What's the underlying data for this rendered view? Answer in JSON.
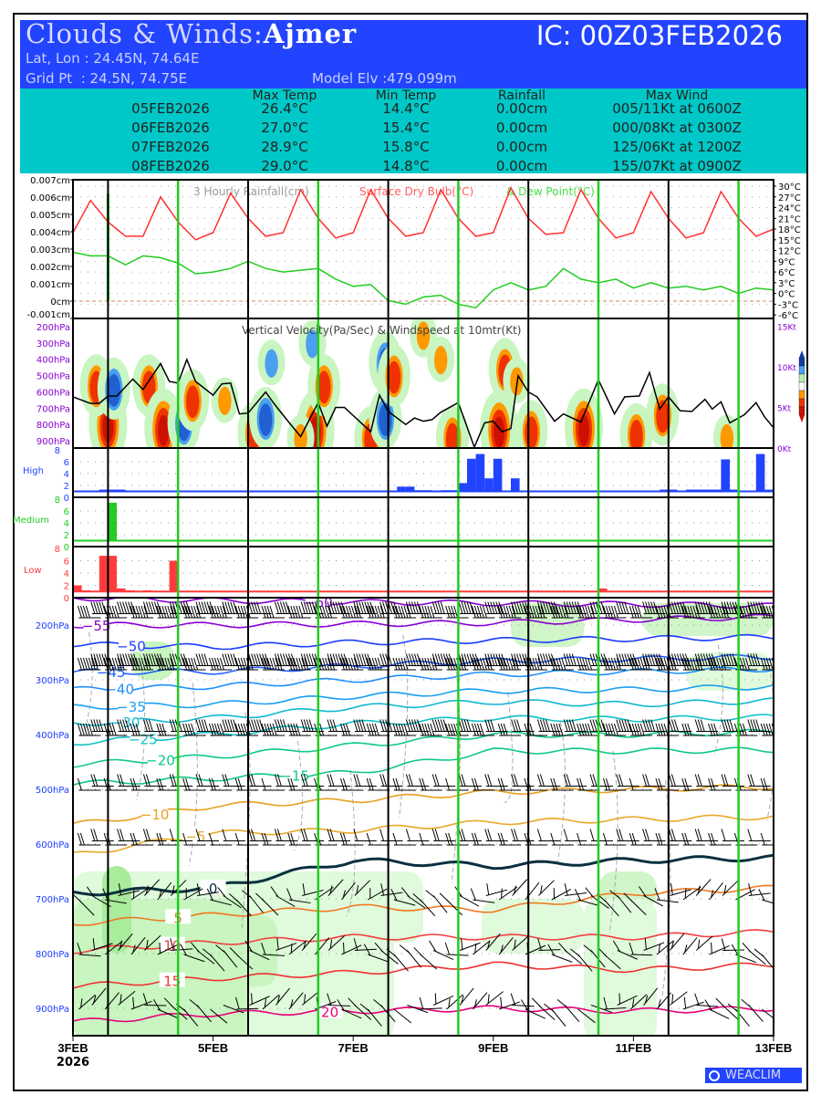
{
  "header": {
    "title_prefix": "Clouds & Winds:",
    "location": "Ajmer",
    "ic": "IC: 00Z03FEB2026",
    "latlon": "Lat, Lon : 24.45N, 74.64E",
    "gridpt": "Grid Pt  : 24.5N, 74.75E",
    "elev": "Model Elv :479.099m"
  },
  "summary": {
    "columns": [
      "Max Temp",
      "Min Temp",
      "Rainfall",
      "Max Wind"
    ],
    "rows": [
      {
        "date": "05FEB2026",
        "max": "26.4°C",
        "min": "14.4°C",
        "rain": "0.00cm",
        "wind": "005/11Kt at 0600Z"
      },
      {
        "date": "06FEB2026",
        "max": "27.0°C",
        "min": "15.4°C",
        "rain": "0.00cm",
        "wind": "000/08Kt at 0300Z"
      },
      {
        "date": "07FEB2026",
        "max": "28.9°C",
        "min": "15.8°C",
        "rain": "0.00cm",
        "wind": "125/06Kt at 1200Z"
      },
      {
        "date": "08FEB2026",
        "max": "29.0°C",
        "min": "14.8°C",
        "rain": "0.00cm",
        "wind": "155/07Kt at 0900Z"
      }
    ]
  },
  "watermark": "WEACLIM",
  "colors": {
    "header_bg": "#2244ff",
    "table_bg": "#00c8c8",
    "dry_bulb": "#ff3030",
    "dew_point": "#22cc22",
    "high": "#2244ff",
    "medium": "#22cc22",
    "low": "#ff3c3c"
  },
  "chart_data": [
    {
      "type": "line",
      "title": "3 Hourly Rainfall(cm) Surface Dry Bulb(°C) & Dew Point(°C)",
      "title_parts": [
        "3 Hourly Rainfall(cm)",
        "Surface Dry Bulb(°C)",
        "& Dew Point(°C)"
      ],
      "x_hours_step": 6,
      "xlim_hours": [
        0,
        240
      ],
      "left_ylim": [
        -0.001,
        0.007
      ],
      "left_ticks": [
        "0.007cm",
        "0.006cm",
        "0.005cm",
        "0.004cm",
        "0.003cm",
        "0.002cm",
        "0.001cm",
        "0cm",
        "-0.001cm"
      ],
      "right_ylim": [
        -6,
        30
      ],
      "right_ticks": [
        "30°C",
        "27°C",
        "24°C",
        "21°C",
        "18°C",
        "15°C",
        "12°C",
        "9°C",
        "6°C",
        "3°C",
        "0°C",
        "-3°C",
        "-6°C"
      ],
      "rain": [
        {
          "hour": 12,
          "cm": 0.0062
        }
      ],
      "series": [
        {
          "name": "Surface Dry Bulb",
          "values": [
            17,
            26,
            20,
            16,
            16,
            27,
            20,
            15,
            17,
            28,
            21,
            16,
            17,
            29,
            21,
            15.5,
            17,
            29,
            21,
            16,
            17,
            29,
            21,
            16,
            17,
            29.5,
            21,
            16.5,
            17,
            29,
            21,
            15.5,
            17,
            28.5,
            21,
            15.5,
            17,
            28.5,
            21,
            16,
            18
          ]
        },
        {
          "name": "Dew Point",
          "values": [
            11.5,
            10.5,
            10.5,
            8,
            10.5,
            10,
            8.5,
            5.5,
            6,
            7,
            9,
            7,
            6,
            6.5,
            7,
            4,
            2,
            2.5,
            -2,
            -3,
            -1,
            -0.5,
            -3,
            -4,
            1,
            3,
            1,
            2,
            7,
            4,
            3,
            4,
            1.5,
            3,
            1.5,
            2,
            1,
            2,
            0,
            1.5,
            1
          ]
        }
      ]
    },
    {
      "type": "heatmap",
      "title": "Vertical Velocity(Pa/Sec) & Windspeed at 10mtr(Kt)",
      "left_ticks": [
        "200hPa",
        "300hPa",
        "400hPa",
        "500hPa",
        "600hPa",
        "700hPa",
        "800hPa",
        "900hPa"
      ],
      "right_ticks": [
        "15Kt",
        "10Kt",
        "5Kt",
        "0Kt"
      ],
      "windspeed_kt": [
        [
          0,
          6.3
        ],
        [
          6,
          5.5
        ],
        [
          9,
          5.5
        ],
        [
          12,
          6.4
        ],
        [
          15,
          6.4
        ],
        [
          20.5,
          8.5
        ],
        [
          24,
          7.2
        ],
        [
          30,
          10.4
        ],
        [
          33,
          8.2
        ],
        [
          36,
          8
        ],
        [
          39,
          10.9
        ],
        [
          42,
          8.2
        ],
        [
          48,
          6.5
        ],
        [
          51,
          7.9
        ],
        [
          54,
          8
        ],
        [
          57,
          4.2
        ],
        [
          60,
          4.3
        ],
        [
          66,
          6.9
        ],
        [
          69,
          5.4
        ],
        [
          73,
          3.6
        ],
        [
          78,
          1.4
        ],
        [
          84,
          5.6
        ],
        [
          87,
          2.7
        ],
        [
          90,
          5
        ],
        [
          93,
          5
        ],
        [
          102,
          2
        ],
        [
          105,
          6.5
        ],
        [
          108,
          4.5
        ],
        [
          114,
          2.9
        ],
        [
          117,
          3.7
        ],
        [
          120,
          3.3
        ],
        [
          123,
          3.5
        ],
        [
          126,
          4.4
        ],
        [
          132,
          5.6
        ],
        [
          137.5,
          0.1
        ],
        [
          141,
          3.1
        ],
        [
          144,
          3.3
        ],
        [
          147,
          2
        ],
        [
          150,
          2.4
        ],
        [
          152.5,
          8.9
        ],
        [
          156,
          6.9
        ],
        [
          159,
          6.3
        ],
        [
          165,
          3.3
        ],
        [
          168,
          4.2
        ],
        [
          174,
          3.2
        ],
        [
          180,
          8.4
        ],
        [
          185.5,
          4.2
        ],
        [
          189,
          6.3
        ],
        [
          194,
          6.4
        ],
        [
          197.5,
          9.3
        ],
        [
          201,
          4.8
        ],
        [
          204,
          6.3
        ],
        [
          208,
          4.6
        ],
        [
          212,
          4.5
        ],
        [
          216.5,
          6
        ],
        [
          219,
          4.8
        ],
        [
          222,
          5.7
        ],
        [
          225,
          3.1
        ],
        [
          230,
          4.1
        ],
        [
          234,
          5.6
        ],
        [
          237,
          3.8
        ],
        [
          240,
          2.5
        ]
      ],
      "features": [
        {
          "hour": 12,
          "p": 800,
          "sign": 1,
          "strength": 3
        },
        {
          "hour": 8,
          "p": 560,
          "sign": 1,
          "strength": 2
        },
        {
          "hour": 14,
          "p": 580,
          "sign": -1,
          "strength": 2
        },
        {
          "hour": 26,
          "p": 560,
          "sign": 1,
          "strength": 2
        },
        {
          "hour": 31,
          "p": 820,
          "sign": 1,
          "strength": 3
        },
        {
          "hour": 38,
          "p": 790,
          "sign": -1,
          "strength": 2
        },
        {
          "hour": 41,
          "p": 650,
          "sign": 1,
          "strength": 2
        },
        {
          "hour": 52,
          "p": 650,
          "sign": 1,
          "strength": 1
        },
        {
          "hour": 62,
          "p": 850,
          "sign": 1,
          "strength": 2
        },
        {
          "hour": 66,
          "p": 760,
          "sign": -1,
          "strength": 2
        },
        {
          "hour": 83,
          "p": 830,
          "sign": 1,
          "strength": 3
        },
        {
          "hour": 78,
          "p": 880,
          "sign": 1,
          "strength": 1
        },
        {
          "hour": 68,
          "p": 420,
          "sign": -1,
          "strength": 1
        },
        {
          "hour": 86,
          "p": 560,
          "sign": 1,
          "strength": 2
        },
        {
          "hour": 102,
          "p": 880,
          "sign": 1,
          "strength": 2
        },
        {
          "hour": 107,
          "p": 760,
          "sign": -1,
          "strength": 2
        },
        {
          "hour": 107,
          "p": 420,
          "sign": -1,
          "strength": 2
        },
        {
          "hour": 110,
          "p": 500,
          "sign": 1,
          "strength": 2
        },
        {
          "hour": 130,
          "p": 880,
          "sign": 1,
          "strength": 2
        },
        {
          "hour": 126,
          "p": 400,
          "sign": 1,
          "strength": 1
        },
        {
          "hour": 146,
          "p": 830,
          "sign": 1,
          "strength": 3
        },
        {
          "hour": 148,
          "p": 460,
          "sign": 1,
          "strength": 2
        },
        {
          "hour": 152,
          "p": 530,
          "sign": 1,
          "strength": 1
        },
        {
          "hour": 157,
          "p": 840,
          "sign": 1,
          "strength": 2
        },
        {
          "hour": 175,
          "p": 820,
          "sign": 1,
          "strength": 3
        },
        {
          "hour": 193,
          "p": 860,
          "sign": 1,
          "strength": 2
        },
        {
          "hour": 202,
          "p": 740,
          "sign": 1,
          "strength": 2
        },
        {
          "hour": 224,
          "p": 880,
          "sign": 1,
          "strength": 1
        },
        {
          "hour": 82,
          "p": 300,
          "sign": -1,
          "strength": 1
        },
        {
          "hour": 120,
          "p": 250,
          "sign": 1,
          "strength": 1
        }
      ]
    },
    {
      "type": "bar",
      "panels": [
        {
          "name": "High",
          "ticks": [
            "8",
            "6",
            "4",
            "2",
            "0"
          ],
          "values": [
            1,
            1,
            1,
            1.3,
            1.3,
            1.3,
            0,
            0,
            1,
            1,
            1,
            1,
            1,
            1,
            1,
            1,
            1,
            1,
            1,
            1,
            1,
            1,
            1,
            1,
            1,
            1,
            1,
            1,
            1,
            1,
            1,
            1,
            1,
            1,
            1,
            1,
            1,
            1.8,
            1.8,
            1.2,
            1.2,
            1,
            1.2,
            1.2,
            2.4,
            6.5,
            7.3,
            3.2,
            6.5,
            1,
            3.2,
            1,
            1,
            1,
            1,
            1,
            1,
            1,
            1,
            1,
            1,
            1,
            1,
            1,
            1,
            1,
            1,
            1.3,
            1.3,
            1,
            1.3,
            1.3,
            1.3,
            1.3,
            6.4,
            1.3,
            1,
            1,
            7.3,
            1.3
          ]
        },
        {
          "name": "Medium",
          "ticks": [
            "8",
            "6",
            "4",
            "2",
            "0"
          ],
          "values": [
            0,
            0,
            0,
            0,
            7.4,
            0,
            0.4,
            0,
            0,
            0,
            0,
            0,
            0,
            0,
            0,
            0,
            0,
            0,
            0,
            0,
            0,
            0,
            0,
            0,
            0,
            0,
            0,
            0,
            0,
            0,
            0,
            0,
            0,
            0,
            0,
            0,
            0,
            0,
            0,
            0,
            0,
            0,
            0,
            0,
            0,
            0,
            0,
            0,
            0,
            0,
            0,
            0,
            0,
            0,
            0,
            0,
            0,
            0,
            0,
            0,
            0,
            0,
            0,
            0,
            0,
            0,
            0,
            0,
            0,
            0,
            0,
            0,
            0,
            0,
            0,
            0,
            0,
            0,
            0,
            0
          ]
        },
        {
          "name": "Low",
          "ticks": [
            "8",
            "6",
            "4",
            "2",
            "0"
          ],
          "values": [
            2,
            1.2,
            1,
            6.8,
            6.8,
            1.5,
            1.2,
            1,
            1.2,
            1,
            1,
            6,
            1,
            1,
            1,
            1,
            1,
            1,
            1,
            1,
            1,
            1,
            1,
            1,
            1,
            1,
            1,
            1,
            1,
            1,
            1,
            1,
            1,
            1,
            1,
            1,
            1,
            1,
            1,
            1,
            1,
            1,
            1,
            1,
            1,
            1,
            1,
            1,
            1,
            1,
            1,
            1,
            1,
            1,
            1,
            1,
            1,
            1,
            1,
            1,
            1.5,
            1,
            1,
            1,
            1,
            1,
            1,
            1,
            1,
            1,
            1,
            1,
            1,
            1,
            1,
            1,
            1,
            1,
            1,
            1
          ]
        }
      ],
      "ylim": [
        0,
        8
      ],
      "x_hours_step": 3
    },
    {
      "type": "line",
      "title": "Temperature (°C), RH and Winds",
      "left_ticks": [
        "200hPa",
        "300hPa",
        "400hPa",
        "500hPa",
        "600hPa",
        "700hPa",
        "800hPa",
        "900hPa"
      ],
      "ylim_hpa": [
        150,
        950
      ],
      "isotherm_hours": [
        0,
        48,
        96,
        144,
        192,
        240
      ],
      "isotherms": [
        {
          "level": "-60",
          "p": [
            150,
            155,
            158,
            160,
            162,
            165
          ],
          "label_hour": 84
        },
        {
          "level": "-55",
          "p": [
            200,
            200,
            198,
            196,
            190,
            185
          ],
          "label_hour": 8
        },
        {
          "level": "-50",
          "p": [
            235,
            240,
            232,
            228,
            225,
            222
          ],
          "label_hour": 20
        },
        {
          "level": "-45",
          "p": [
            285,
            285,
            275,
            265,
            262,
            258
          ],
          "label_hour": 13
        },
        {
          "level": "-40",
          "p": [
            318,
            312,
            300,
            290,
            285,
            280
          ],
          "label_hour": 16
        },
        {
          "level": "-35",
          "p": [
            350,
            345,
            330,
            320,
            318,
            312
          ],
          "label_hour": 20
        },
        {
          "level": "-30",
          "p": [
            380,
            370,
            350,
            340,
            345,
            338
          ],
          "label_hour": 18
        },
        {
          "level": "-25",
          "p": [
            415,
            400,
            380,
            370,
            372,
            368
          ],
          "label_hour": 24
        },
        {
          "level": "-20",
          "p": [
            455,
            440,
            420,
            400,
            400,
            395
          ],
          "label_hour": 30
        },
        {
          "level": "-15",
          "p": [
            490,
            480,
            470,
            430,
            430,
            428
          ],
          "label_hour": 76
        },
        {
          "level": "-10",
          "p": [
            565,
            530,
            520,
            505,
            500,
            495
          ],
          "label_hour": 28
        },
        {
          "level": "-5",
          "p": [
            620,
            580,
            575,
            560,
            555,
            550
          ],
          "label_hour": 42
        },
        {
          "level": "0",
          "p": [
            690,
            680,
            630,
            640,
            630,
            625
          ],
          "label_hour": 48
        },
        {
          "level": "5",
          "p": [
            745,
            730,
            715,
            720,
            690,
            680
          ],
          "label_hour": 36
        },
        {
          "level": "10",
          "p": [
            795,
            780,
            770,
            770,
            770,
            760
          ],
          "label_hour": 34
        },
        {
          "level": "15",
          "p": [
            860,
            845,
            835,
            820,
            830,
            820
          ],
          "label_hour": 34
        },
        {
          "level": "20",
          "p": [
            925,
            910,
            905,
            900,
            905,
            900
          ],
          "label_hour": 88
        }
      ],
      "wind_levels": [
        {
          "p": 185,
          "kt": 55
        },
        {
          "p": 280,
          "kt": 60
        },
        {
          "p": 400,
          "kt": 40
        },
        {
          "p": 500,
          "kt": 20
        },
        {
          "p": 600,
          "kt": 15
        },
        {
          "p": 700,
          "kt": 10
        },
        {
          "p": 800,
          "kt": 8
        },
        {
          "p": 900,
          "kt": 6
        }
      ],
      "x_tick_labels": [
        "3FEB",
        "5FEB",
        "7FEB",
        "9FEB",
        "11FEB",
        "13FEB"
      ],
      "x_tick_hours": [
        0,
        48,
        96,
        144,
        192,
        240
      ],
      "year_label": "2026"
    }
  ]
}
